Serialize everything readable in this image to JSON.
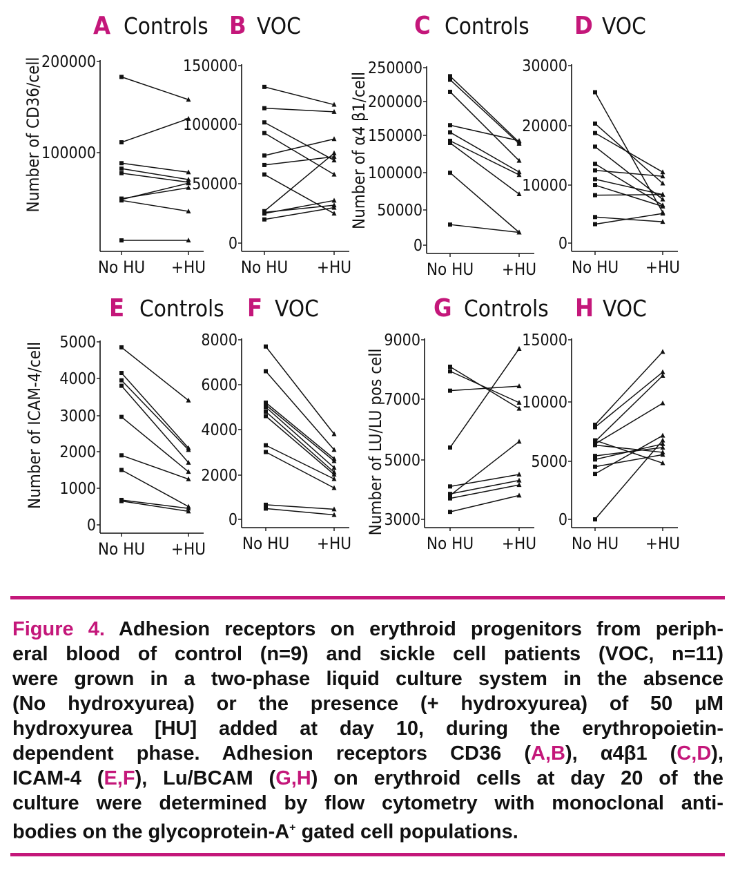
{
  "chart_data": [
    {
      "type": "line",
      "letter": "A",
      "title": "Controls",
      "ylabel": "Number of CD36/cell",
      "categories": [
        "No HU",
        "+HU"
      ],
      "yticks": [
        "200000",
        "100000"
      ],
      "ylim": [
        0,
        200000
      ],
      "series": [
        [
          183000,
          158000
        ],
        [
          111000,
          137000
        ],
        [
          88000,
          78000
        ],
        [
          82000,
          70000
        ],
        [
          77000,
          67000
        ],
        [
          49000,
          61000
        ],
        [
          48000,
          66000
        ],
        [
          47000,
          35000
        ],
        [
          3000,
          3000
        ]
      ]
    },
    {
      "type": "line",
      "letter": "B",
      "title": "VOC",
      "ylabel": "",
      "categories": [
        "No HU",
        "+HU"
      ],
      "yticks": [
        "150000",
        "100000",
        "50000",
        "0"
      ],
      "ylim": [
        0,
        150000
      ],
      "series": [
        [
          132000,
          117000
        ],
        [
          114000,
          111000
        ],
        [
          102000,
          70000
        ],
        [
          93000,
          58000
        ],
        [
          74000,
          88000
        ],
        [
          66000,
          73000
        ],
        [
          58000,
          25000
        ],
        [
          27000,
          76000
        ],
        [
          26000,
          32000
        ],
        [
          25000,
          36000
        ],
        [
          20000,
          30000
        ]
      ]
    },
    {
      "type": "line",
      "letter": "C",
      "title": "Controls",
      "ylabel": "Number of α4 β1/cell",
      "categories": [
        "No HU",
        "+HU"
      ],
      "yticks": [
        "250000",
        "200000",
        "150000",
        "100000",
        "50000",
        "0"
      ],
      "ylim": [
        0,
        250000
      ],
      "series": [
        [
          238000,
          145000
        ],
        [
          233000,
          143000
        ],
        [
          216000,
          119000
        ],
        [
          169000,
          147000
        ],
        [
          159000,
          103000
        ],
        [
          147000,
          99000
        ],
        [
          144000,
          72000
        ],
        [
          102000,
          18000
        ],
        [
          29000,
          18000
        ]
      ]
    },
    {
      "type": "line",
      "letter": "D",
      "title": "VOC",
      "ylabel": "",
      "categories": [
        "No HU",
        "+HU"
      ],
      "yticks": [
        "30000",
        "20000",
        "10000",
        "0"
      ],
      "ylim": [
        0,
        30000
      ],
      "series": [
        [
          25500,
          5200
        ],
        [
          20200,
          10100
        ],
        [
          18600,
          12000
        ],
        [
          16300,
          7400
        ],
        [
          13400,
          6400
        ],
        [
          12300,
          11300
        ],
        [
          10800,
          8200
        ],
        [
          9800,
          6200
        ],
        [
          8100,
          8200
        ],
        [
          4400,
          3600
        ],
        [
          3200,
          5000
        ]
      ]
    },
    {
      "type": "line",
      "letter": "E",
      "title": "Controls",
      "ylabel": "Number of ICAM-4/cell",
      "categories": [
        "No HU",
        "+HU"
      ],
      "yticks": [
        "5000",
        "4000",
        "3000",
        "2000",
        "1000",
        "0"
      ],
      "ylim": [
        0,
        5000
      ],
      "series": [
        [
          4850,
          3400
        ],
        [
          4150,
          2100
        ],
        [
          3950,
          2050
        ],
        [
          3800,
          1700
        ],
        [
          2950,
          1450
        ],
        [
          1900,
          1250
        ],
        [
          1500,
          500
        ],
        [
          680,
          450
        ],
        [
          650,
          370
        ]
      ]
    },
    {
      "type": "line",
      "letter": "F",
      "title": "VOC",
      "ylabel": "",
      "categories": [
        "No HU",
        "+HU"
      ],
      "yticks": [
        "8000",
        "6000",
        "4000",
        "2000",
        "0"
      ],
      "ylim": [
        0,
        8000
      ],
      "series": [
        [
          7700,
          3800
        ],
        [
          6600,
          3100
        ],
        [
          5200,
          2700
        ],
        [
          5100,
          2600
        ],
        [
          5000,
          2300
        ],
        [
          4800,
          2100
        ],
        [
          4600,
          2000
        ],
        [
          3300,
          1800
        ],
        [
          3000,
          1400
        ],
        [
          650,
          450
        ],
        [
          480,
          200
        ]
      ]
    },
    {
      "type": "line",
      "letter": "G",
      "title": "Controls",
      "ylabel": "Number of LU/LU pos cell",
      "categories": [
        "No HU",
        "+HU"
      ],
      "yticks": [
        "9000",
        "7000",
        "5000",
        "3000"
      ],
      "ylim": [
        3000,
        9000
      ],
      "series": [
        [
          8100,
          6700
        ],
        [
          7950,
          6900
        ],
        [
          7300,
          7450
        ],
        [
          5400,
          8700
        ],
        [
          4100,
          4500
        ],
        [
          3850,
          4300
        ],
        [
          3800,
          5600
        ],
        [
          3700,
          4150
        ],
        [
          3250,
          3800
        ]
      ]
    },
    {
      "type": "line",
      "letter": "H",
      "title": "VOC",
      "ylabel": "",
      "categories": [
        "No HU",
        "+HU"
      ],
      "yticks": [
        "15000",
        "10000",
        "5000",
        "0"
      ],
      "ylim": [
        0,
        15000
      ],
      "series": [
        [
          7900,
          14000
        ],
        [
          7700,
          12300
        ],
        [
          6500,
          12000
        ],
        [
          6300,
          9700
        ],
        [
          6200,
          5600
        ],
        [
          5300,
          6000
        ],
        [
          5000,
          6300
        ],
        [
          4400,
          5400
        ],
        [
          3800,
          7000
        ],
        [
          6600,
          4700
        ],
        [
          0,
          6600
        ]
      ]
    }
  ],
  "caption": {
    "lines": [
      {
        "segs": [
          {
            "t": "Figure 4.",
            "a": true
          },
          {
            "t": " Adhesion receptors on erythroid progenitors from periph-",
            "a": false
          }
        ]
      },
      {
        "segs": [
          {
            "t": "eral blood of control (n=9) and sickle cell  patients (VOC, n=11)",
            "a": false
          }
        ]
      },
      {
        "segs": [
          {
            "t": "were grown in a two-phase liquid culture system in the absence",
            "a": false
          }
        ]
      },
      {
        "segs": [
          {
            "t": "(No hydroxyurea) or the presence (+ hydroxyurea) of 50 μM",
            "a": false
          }
        ]
      },
      {
        "segs": [
          {
            "t": "hydroxyurea [HU] added at day 10, during the erythropoietin-",
            "a": false
          }
        ]
      },
      {
        "segs": [
          {
            "t": "dependent phase. Adhesion receptors CD36 (",
            "a": false
          },
          {
            "t": "A,B",
            "a": true
          },
          {
            "t": "), α4β1 (",
            "a": false
          },
          {
            "t": "C,D",
            "a": true
          },
          {
            "t": "),",
            "a": false
          }
        ]
      },
      {
        "segs": [
          {
            "t": "ICAM-4 (",
            "a": false
          },
          {
            "t": "E,F",
            "a": true
          },
          {
            "t": "), Lu/BCAM (",
            "a": false
          },
          {
            "t": "G,H",
            "a": true
          },
          {
            "t": ") on erythroid cells at day 20 of the",
            "a": false
          }
        ]
      },
      {
        "segs": [
          {
            "t": "culture were determined by flow cytometry with monoclonal anti-",
            "a": false
          }
        ]
      },
      {
        "segs": [
          {
            "t": "bodies on the glycoprotein-A",
            "a": false
          },
          {
            "t": "+",
            "a": false,
            "sup": true
          },
          {
            "t": " gated cell populations.",
            "a": false
          }
        ]
      }
    ]
  },
  "colors": {
    "accent": "#c4177a",
    "line": "#111111"
  }
}
